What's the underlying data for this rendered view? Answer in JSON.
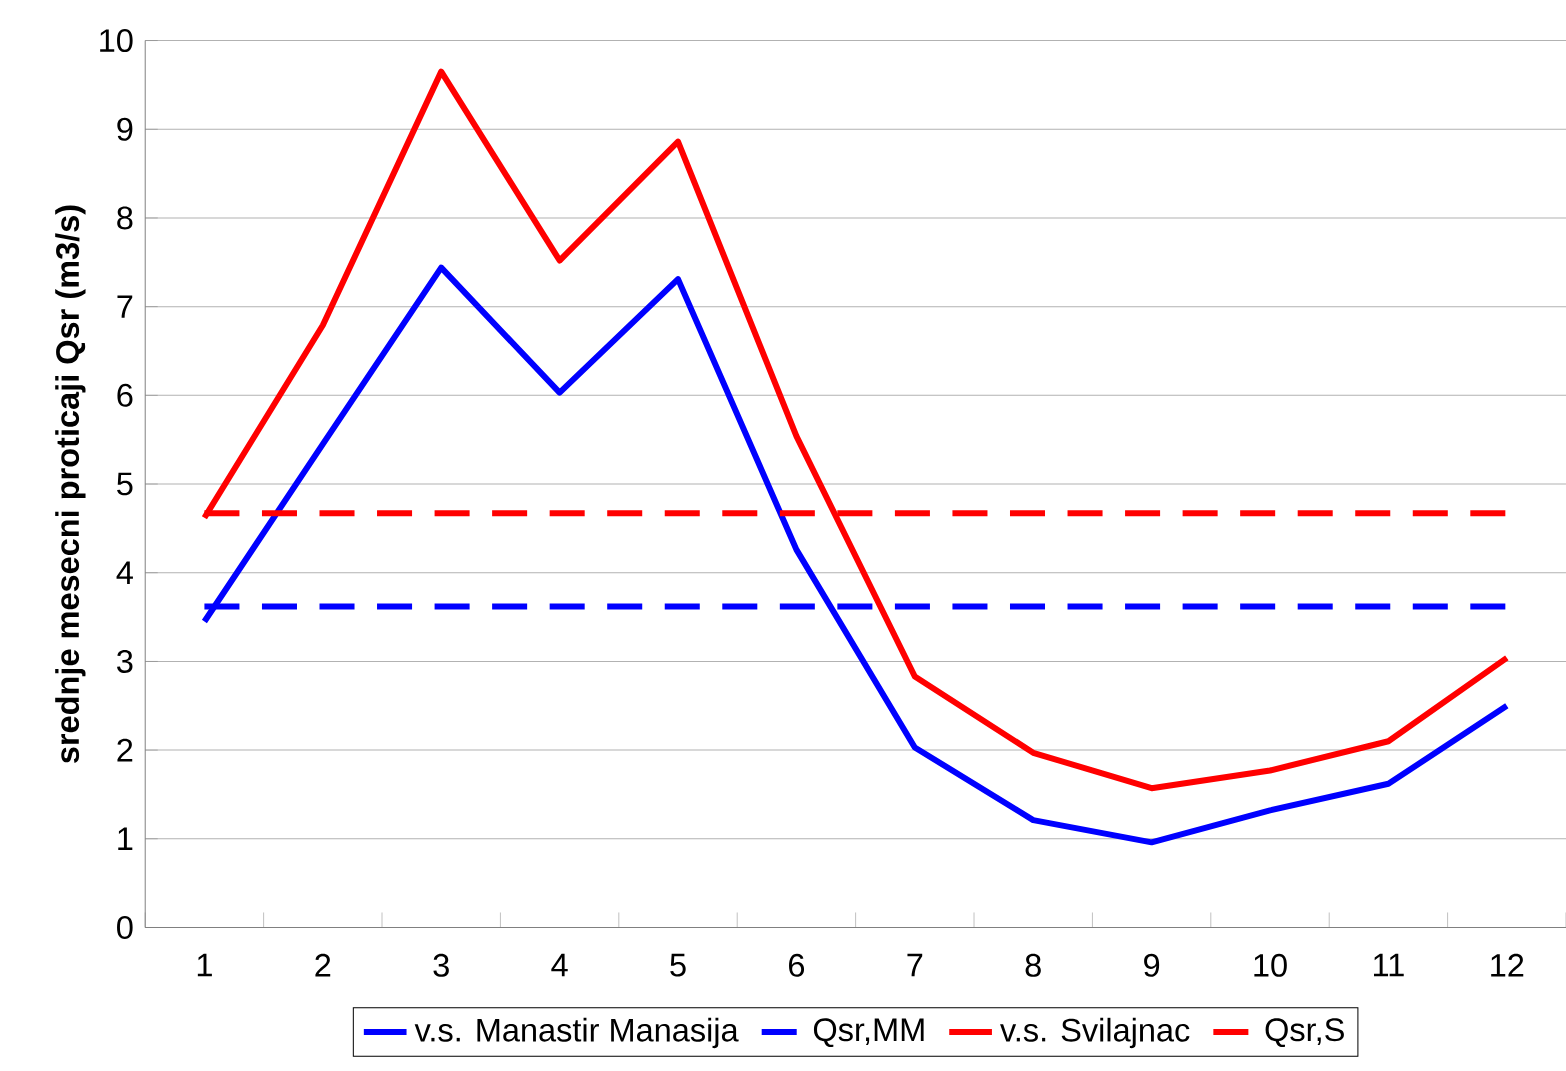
{
  "chart_data": {
    "type": "line",
    "ylabel": "srednje mesecni proticaji Qsr (m3/s)",
    "categories": [
      "1",
      "2",
      "3",
      "4",
      "5",
      "6",
      "7",
      "8",
      "9",
      "10",
      "11",
      "12"
    ],
    "series": [
      {
        "name": "v.s. Manastir Manasija",
        "color": "#0000ff",
        "line_style": "solid",
        "values": [
          3.45,
          5.45,
          7.44,
          6.03,
          7.31,
          4.26,
          2.03,
          1.21,
          0.96,
          1.32,
          1.62,
          2.5
        ]
      },
      {
        "name": "Qsr,MM",
        "color": "#0000ff",
        "line_style": "dashed",
        "values": [
          3.62,
          3.62,
          3.62,
          3.62,
          3.62,
          3.62,
          3.62,
          3.62,
          3.62,
          3.62,
          3.62,
          3.62
        ]
      },
      {
        "name": "v.s. Svilajnac",
        "color": "#ff0000",
        "line_style": "solid",
        "values": [
          4.62,
          6.79,
          9.65,
          7.52,
          8.86,
          5.54,
          2.83,
          1.97,
          1.57,
          1.77,
          2.1,
          3.04
        ]
      },
      {
        "name": "Qsr,S",
        "color": "#ff0000",
        "line_style": "dashed",
        "values": [
          4.67,
          4.67,
          4.67,
          4.67,
          4.67,
          4.67,
          4.67,
          4.67,
          4.67,
          4.67,
          4.67,
          4.67
        ]
      }
    ],
    "ylim": [
      0,
      10
    ],
    "yticks": [
      0,
      1,
      2,
      3,
      4,
      5,
      6,
      7,
      8,
      9,
      10
    ],
    "grid": "y",
    "legend": "bottom",
    "marker": "none"
  }
}
